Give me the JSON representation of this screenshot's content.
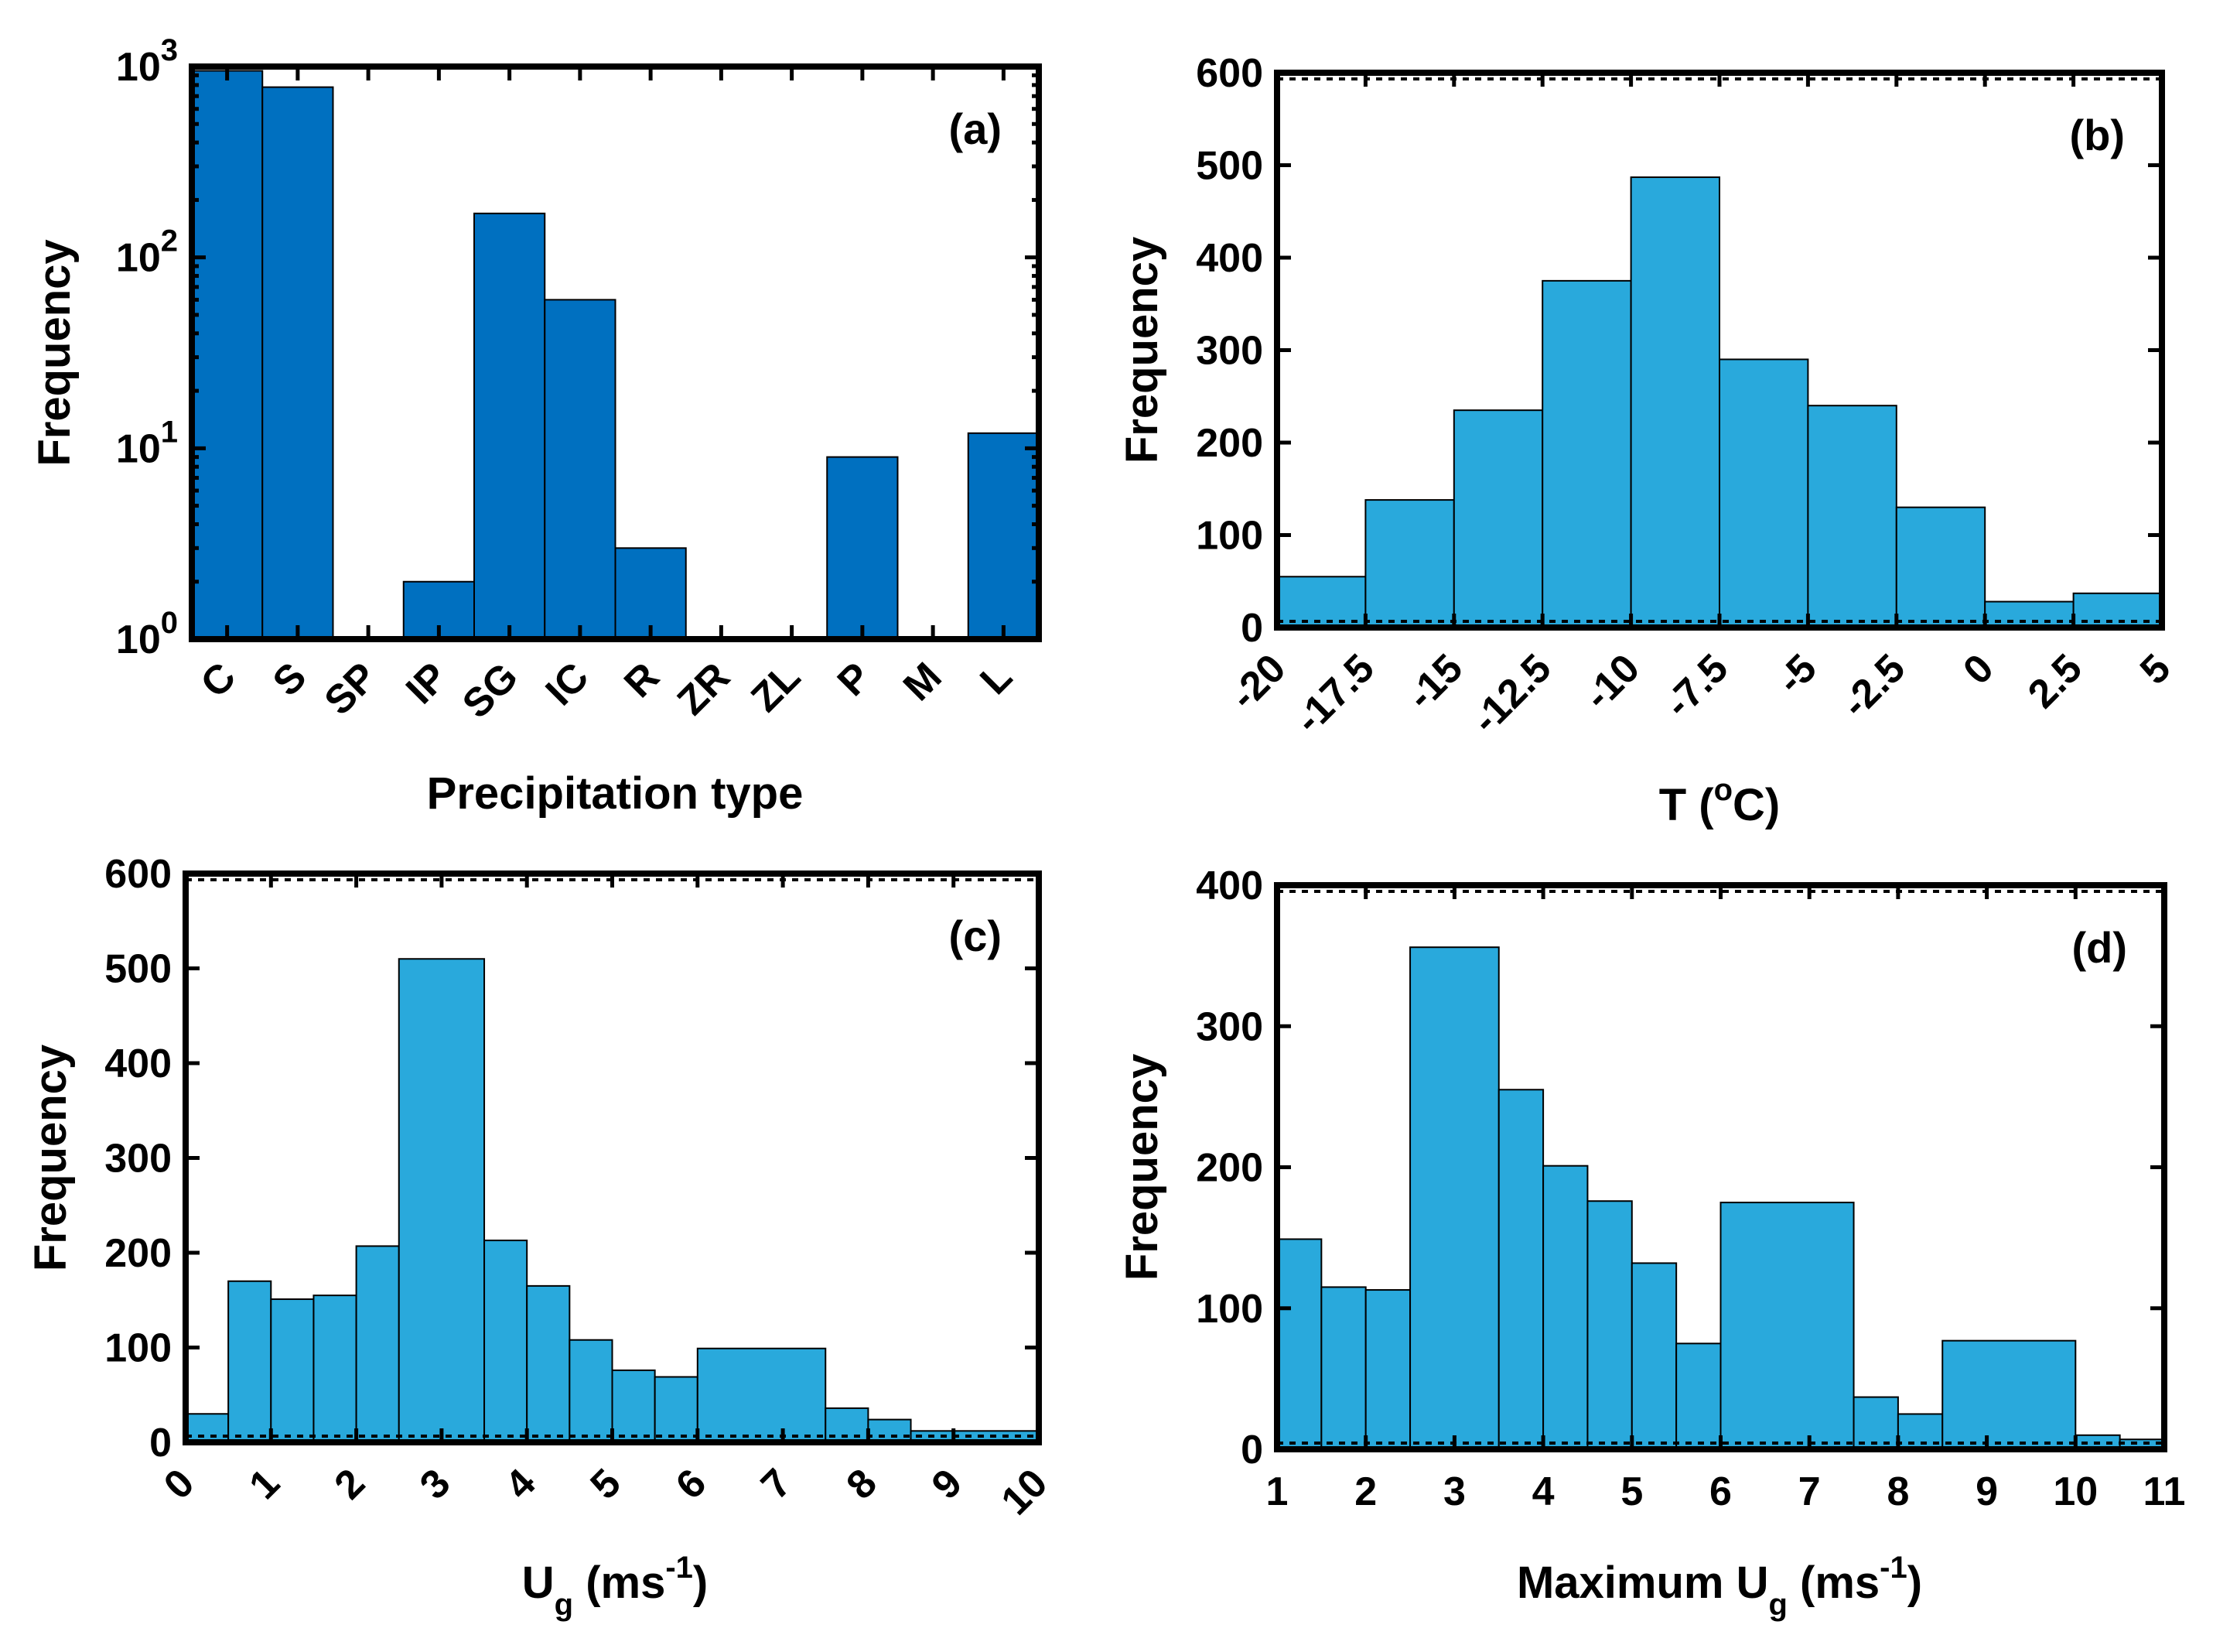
{
  "chart_data": [
    {
      "id": "a",
      "type": "bar",
      "panel_label": "(a)",
      "title": "",
      "xlabel": "Precipitation type",
      "ylabel": "Frequency",
      "yscale": "log",
      "ylim": [
        1,
        1000
      ],
      "yticks": [
        {
          "value": 1,
          "base": "10",
          "exp": "0"
        },
        {
          "value": 10,
          "base": "10",
          "exp": "1"
        },
        {
          "value": 100,
          "base": "10",
          "exp": "2"
        },
        {
          "value": 1000,
          "base": "10",
          "exp": "3"
        }
      ],
      "categories": [
        "C",
        "S",
        "SP",
        "IP",
        "SG",
        "IC",
        "R",
        "ZR",
        "ZL",
        "P",
        "M",
        "L"
      ],
      "values": [
        950,
        780,
        0,
        2,
        170,
        60,
        3,
        0,
        0,
        9,
        0,
        12
      ],
      "color": "#0070C0",
      "legend": "none",
      "grid": false
    },
    {
      "id": "b",
      "type": "bar",
      "panel_label": "(b)",
      "title": "",
      "xlabel": "T (",
      "xlabel_sup": "o",
      "xlabel_after": "C)",
      "ylabel": "Frequency",
      "ylim": [
        0,
        600
      ],
      "yticks": [
        "0",
        "100",
        "200",
        "300",
        "400",
        "500",
        "600"
      ],
      "xlim": [
        -20,
        5
      ],
      "xticks": [
        "-20",
        "-17.5",
        "-15",
        "-12.5",
        "-10",
        "-7.5",
        "-5",
        "-2.5",
        "0",
        "2.5",
        "5"
      ],
      "bins": [
        {
          "x0": -20,
          "x1": -17.5,
          "value": 55
        },
        {
          "x0": -17.5,
          "x1": -15,
          "value": 138
        },
        {
          "x0": -15,
          "x1": -12.5,
          "value": 235
        },
        {
          "x0": -12.5,
          "x1": -10,
          "value": 375
        },
        {
          "x0": -10,
          "x1": -7.5,
          "value": 487
        },
        {
          "x0": -7.5,
          "x1": -5,
          "value": 290
        },
        {
          "x0": -5,
          "x1": -2.5,
          "value": 240
        },
        {
          "x0": -2.5,
          "x1": 0,
          "value": 130
        },
        {
          "x0": 0,
          "x1": 2.5,
          "value": 28
        },
        {
          "x0": 2.5,
          "x1": 5,
          "value": 37
        }
      ],
      "color": "#29A9DC",
      "legend": "none",
      "grid": false
    },
    {
      "id": "c",
      "type": "bar",
      "panel_label": "(c)",
      "title": "",
      "xlabel": "U",
      "xlabel_sub": "g",
      "xlabel_after": " (ms",
      "xlabel_sup": "-1",
      "xlabel_end": ")",
      "ylabel": "Frequency",
      "ylim": [
        0,
        600
      ],
      "yticks": [
        "0",
        "100",
        "200",
        "300",
        "400",
        "500",
        "600"
      ],
      "xlim": [
        0,
        10
      ],
      "xticks": [
        "0",
        "1",
        "2",
        "3",
        "4",
        "5",
        "6",
        "7",
        "8",
        "9",
        "10"
      ],
      "bins": [
        {
          "x0": 0,
          "x1": 0.5,
          "value": 30
        },
        {
          "x0": 0.5,
          "x1": 1,
          "value": 170
        },
        {
          "x0": 1,
          "x1": 1.5,
          "value": 151
        },
        {
          "x0": 1.5,
          "x1": 2,
          "value": 155
        },
        {
          "x0": 2,
          "x1": 2.5,
          "value": 207
        },
        {
          "x0": 2.5,
          "x1": 3.5,
          "value": 510
        },
        {
          "x0": 3.5,
          "x1": 4,
          "value": 213
        },
        {
          "x0": 4,
          "x1": 4.5,
          "value": 165
        },
        {
          "x0": 4.5,
          "x1": 5,
          "value": 108
        },
        {
          "x0": 5,
          "x1": 5.5,
          "value": 76
        },
        {
          "x0": 5.5,
          "x1": 6,
          "value": 69
        },
        {
          "x0": 6,
          "x1": 7.5,
          "value": 99
        },
        {
          "x0": 7.5,
          "x1": 8,
          "value": 36
        },
        {
          "x0": 8,
          "x1": 8.5,
          "value": 24
        },
        {
          "x0": 8.5,
          "x1": 10,
          "value": 12
        }
      ],
      "color": "#29A9DC",
      "legend": "none",
      "grid": false
    },
    {
      "id": "d",
      "type": "bar",
      "panel_label": "(d)",
      "title": "",
      "xlabel": "Maximum U",
      "xlabel_sub": "g",
      "xlabel_after": " (ms",
      "xlabel_sup": "-1",
      "xlabel_end": ")",
      "ylabel": "Frequency",
      "ylim": [
        0,
        400
      ],
      "yticks": [
        "0",
        "100",
        "200",
        "300",
        "400"
      ],
      "xlim": [
        1,
        11
      ],
      "xticks": [
        "1",
        "2",
        "3",
        "4",
        "5",
        "6",
        "7",
        "8",
        "9",
        "10",
        "11"
      ],
      "bins": [
        {
          "x0": 1,
          "x1": 1.5,
          "value": 149
        },
        {
          "x0": 1.5,
          "x1": 2,
          "value": 115
        },
        {
          "x0": 2,
          "x1": 2.5,
          "value": 113
        },
        {
          "x0": 2.5,
          "x1": 3.5,
          "value": 356
        },
        {
          "x0": 3.5,
          "x1": 4,
          "value": 255
        },
        {
          "x0": 4,
          "x1": 4.5,
          "value": 201
        },
        {
          "x0": 4.5,
          "x1": 5,
          "value": 176
        },
        {
          "x0": 5,
          "x1": 5.5,
          "value": 132
        },
        {
          "x0": 5.5,
          "x1": 6,
          "value": 75
        },
        {
          "x0": 6,
          "x1": 7.5,
          "value": 175
        },
        {
          "x0": 7.5,
          "x1": 8,
          "value": 37
        },
        {
          "x0": 8,
          "x1": 8.5,
          "value": 25
        },
        {
          "x0": 8.5,
          "x1": 10,
          "value": 77
        },
        {
          "x0": 10,
          "x1": 10.5,
          "value": 10
        },
        {
          "x0": 10.5,
          "x1": 11,
          "value": 7
        }
      ],
      "color": "#29A9DC",
      "legend": "none",
      "grid": false
    }
  ]
}
